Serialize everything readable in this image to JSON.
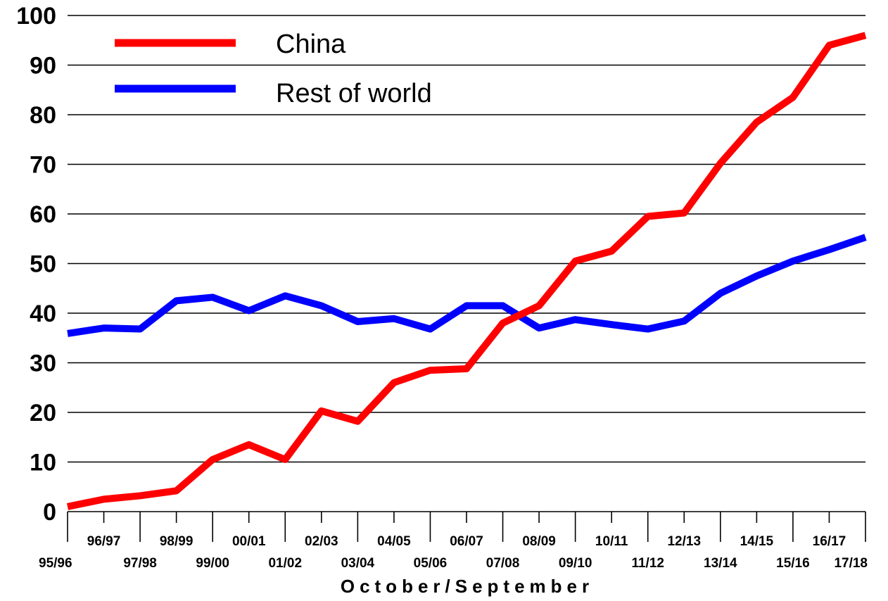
{
  "chart_data": {
    "type": "line",
    "categories": [
      "95/96",
      "96/97",
      "97/98",
      "98/99",
      "99/00",
      "00/01",
      "01/02",
      "02/03",
      "03/04",
      "04/05",
      "05/06",
      "06/07",
      "07/08",
      "08/09",
      "09/10",
      "10/11",
      "11/12",
      "12/13",
      "13/14",
      "14/15",
      "15/16",
      "16/17",
      "17/18"
    ],
    "series": [
      {
        "name": "China",
        "color": "#ff0000",
        "values": [
          1,
          2.5,
          3.2,
          4.2,
          10.5,
          13.5,
          10.5,
          20.3,
          18.2,
          26,
          28.5,
          28.8,
          38,
          41.5,
          50.5,
          52.5,
          59.5,
          60.2,
          70.2,
          78.5,
          83.5,
          94,
          96
        ]
      },
      {
        "name": "Rest of world",
        "color": "#0000ff",
        "values": [
          35.9,
          37,
          36.8,
          42.5,
          43.2,
          40.5,
          43.5,
          41.5,
          38.3,
          38.9,
          36.8,
          41.5,
          41.5,
          37,
          38.7,
          37.7,
          36.8,
          38.4,
          44,
          47.5,
          50.5,
          52.8,
          55.3
        ]
      }
    ],
    "xlabel": "October/September",
    "ylabel": "",
    "ylim": [
      0,
      100
    ],
    "yticks": [
      "0",
      "10",
      "20",
      "30",
      "40",
      "50",
      "60",
      "70",
      "80",
      "90",
      "100"
    ],
    "grid": "horizontal",
    "legend_position": "top-left"
  }
}
